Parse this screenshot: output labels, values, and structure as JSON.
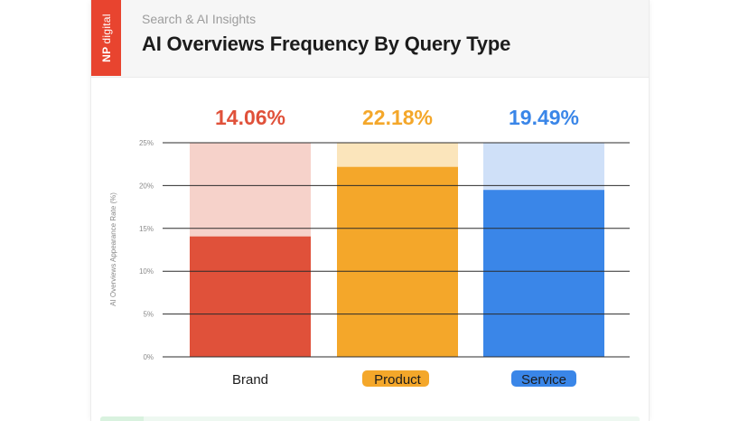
{
  "header": {
    "logo_text_bold": "NP",
    "logo_text": "digital",
    "subtitle": "Search & AI Insights",
    "title": "AI Overviews Frequency By Query Type"
  },
  "colors": {
    "brand": "#e0513a",
    "brand_light": "#f6d2ca",
    "product": "#f4a72a",
    "product_light": "#fbe5bb",
    "service": "#3a86e8",
    "service_light": "#cfe0f8",
    "logo": "#e8442f"
  },
  "chart_data": {
    "type": "bar",
    "title": "AI Overviews Frequency By Query Type",
    "ylabel": "AI Overviews Appearance Rate (%)",
    "xlabel": "",
    "ylim": [
      0,
      25
    ],
    "yticks": [
      "0%",
      "5%",
      "10%",
      "15%",
      "20%",
      "25%"
    ],
    "categories": [
      "Brand",
      "Product",
      "Service"
    ],
    "values": [
      14.06,
      22.18,
      19.49
    ],
    "value_labels": [
      "14.06%",
      "22.18%",
      "19.49%"
    ],
    "grid": true,
    "category_highlights": [
      "none",
      "marker",
      "marker"
    ]
  }
}
